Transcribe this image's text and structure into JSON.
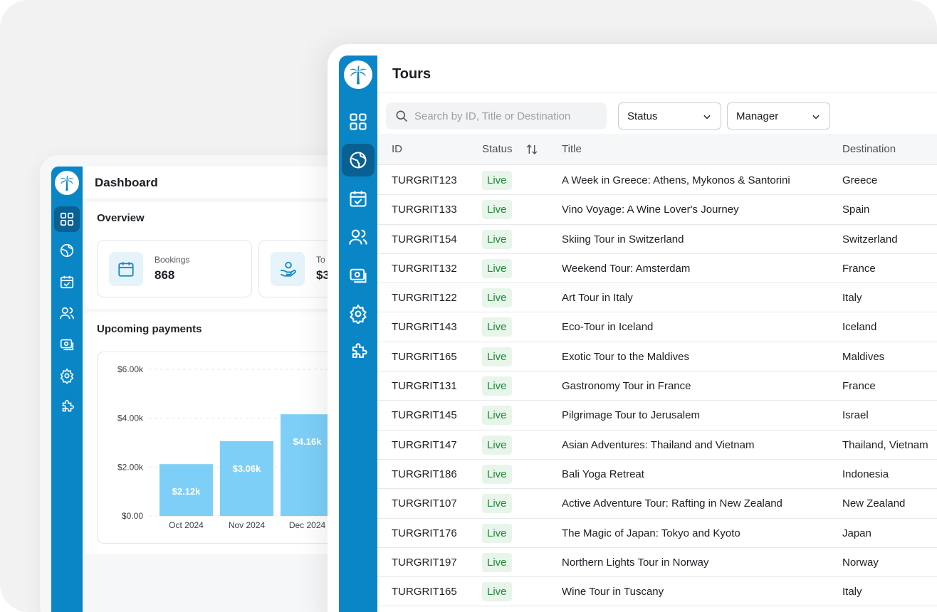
{
  "dashboard": {
    "title": "Dashboard",
    "overview_title": "Overview",
    "stats": [
      {
        "label": "Bookings",
        "value": "868",
        "icon": "calendar-icon"
      },
      {
        "label": "To",
        "value": "$3",
        "icon": "hand-coins-icon"
      }
    ],
    "payments_title": "Upcoming payments"
  },
  "chart_data": {
    "type": "bar",
    "title": "Upcoming payments",
    "categories": [
      "Oct 2024",
      "Nov 2024",
      "Dec 2024"
    ],
    "values": [
      2.12,
      3.06,
      4.16
    ],
    "value_labels": [
      "$2.12k",
      "$3.06k",
      "$4.16k"
    ],
    "y_ticks": [
      "$0.00",
      "$2.00k",
      "$4.00k",
      "$6.00k"
    ],
    "ylim": [
      0,
      6
    ],
    "grid": true,
    "bar_color": "#7dcff7"
  },
  "tours": {
    "title": "Tours",
    "search_placeholder": "Search by ID, Title or Destination",
    "filters": {
      "status": "Status",
      "manager": "Manager"
    },
    "columns": {
      "id": "ID",
      "status": "Status",
      "title": "Title",
      "destination": "Destination"
    },
    "rows": [
      {
        "id": "TURGRIT123",
        "status": "Live",
        "title": "A Week in Greece: Athens, Mykonos & Santorini",
        "destination": "Greece"
      },
      {
        "id": "TURGRIT133",
        "status": "Live",
        "title": "Vino Voyage: A Wine Lover's Journey",
        "destination": "Spain"
      },
      {
        "id": "TURGRIT154",
        "status": "Live",
        "title": "Skiing Tour in Switzerland",
        "destination": "Switzerland"
      },
      {
        "id": "TURGRIT132",
        "status": "Live",
        "title": "Weekend Tour: Amsterdam",
        "destination": "France"
      },
      {
        "id": "TURGRIT122",
        "status": "Live",
        "title": "Art Tour in Italy",
        "destination": "Italy"
      },
      {
        "id": "TURGRIT143",
        "status": "Live",
        "title": "Eco-Tour in Iceland",
        "destination": "Iceland"
      },
      {
        "id": "TURGRIT165",
        "status": "Live",
        "title": "Exotic Tour to the Maldives",
        "destination": "Maldives"
      },
      {
        "id": "TURGRIT131",
        "status": "Live",
        "title": "Gastronomy Tour in France",
        "destination": "France"
      },
      {
        "id": "TURGRIT145",
        "status": "Live",
        "title": "Pilgrimage Tour to Jerusalem",
        "destination": "Israel"
      },
      {
        "id": "TURGRIT147",
        "status": "Live",
        "title": "Asian Adventures: Thailand and Vietnam",
        "destination": "Thailand, Vietnam"
      },
      {
        "id": "TURGRIT186",
        "status": "Live",
        "title": "Bali Yoga Retreat",
        "destination": "Indonesia"
      },
      {
        "id": "TURGRIT107",
        "status": "Live",
        "title": "Active Adventure Tour: Rafting in New Zealand",
        "destination": "New Zealand"
      },
      {
        "id": "TURGRIT176",
        "status": "Live",
        "title": "The Magic of Japan: Tokyo and Kyoto",
        "destination": "Japan"
      },
      {
        "id": "TURGRIT197",
        "status": "Live",
        "title": "Northern Lights Tour in Norway",
        "destination": "Norway"
      },
      {
        "id": "TURGRIT165",
        "status": "Live",
        "title": "Wine Tour in Tuscany",
        "destination": "Italy"
      }
    ]
  },
  "sidebar_icons": [
    "palm-logo-icon",
    "dashboard-grid-icon",
    "globe-icon",
    "calendar-check-icon",
    "users-icon",
    "money-icon",
    "settings-gear-icon",
    "puzzle-icon"
  ],
  "colors": {
    "sidebar": "#0a86c7",
    "sidebar_active": "#0a5f93",
    "live_badge_bg": "#e8f5ea",
    "live_badge_text": "#1e8a3a"
  }
}
